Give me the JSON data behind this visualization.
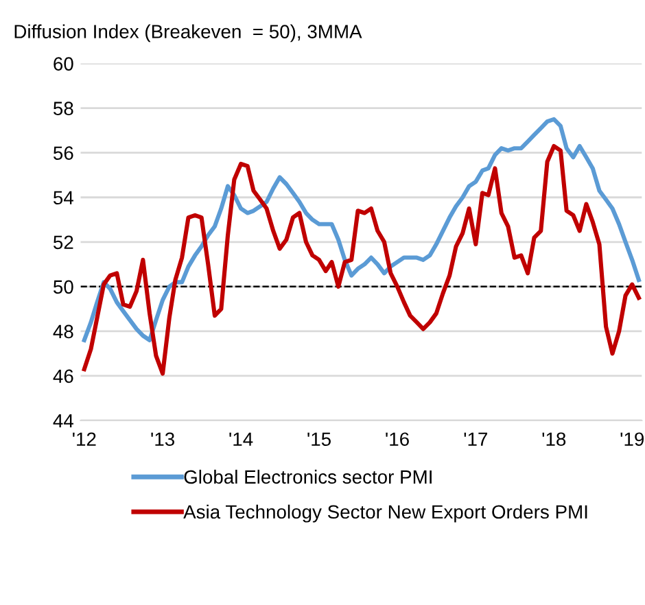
{
  "chart_data": {
    "type": "line",
    "ylabel": "Diffusion Index (Breakeven  = 50), 3MMA",
    "x": [
      "2012-01",
      "2012-02",
      "2012-03",
      "2012-04",
      "2012-05",
      "2012-06",
      "2012-07",
      "2012-08",
      "2012-09",
      "2012-10",
      "2012-11",
      "2012-12",
      "2013-01",
      "2013-02",
      "2013-03",
      "2013-04",
      "2013-05",
      "2013-06",
      "2013-07",
      "2013-08",
      "2013-09",
      "2013-10",
      "2013-11",
      "2013-12",
      "2014-01",
      "2014-02",
      "2014-03",
      "2014-04",
      "2014-05",
      "2014-06",
      "2014-07",
      "2014-08",
      "2014-09",
      "2014-10",
      "2014-11",
      "2014-12",
      "2015-01",
      "2015-02",
      "2015-03",
      "2015-04",
      "2015-05",
      "2015-06",
      "2015-07",
      "2015-08",
      "2015-09",
      "2015-10",
      "2015-11",
      "2015-12",
      "2016-01",
      "2016-02",
      "2016-03",
      "2016-04",
      "2016-05",
      "2016-06",
      "2016-07",
      "2016-08",
      "2016-09",
      "2016-10",
      "2016-11",
      "2016-12",
      "2017-01",
      "2017-02",
      "2017-03",
      "2017-04",
      "2017-05",
      "2017-06",
      "2017-07",
      "2017-08",
      "2017-09",
      "2017-10",
      "2017-11",
      "2017-12",
      "2018-01",
      "2018-02",
      "2018-03",
      "2018-04",
      "2018-05",
      "2018-06",
      "2018-07",
      "2018-08",
      "2018-09",
      "2018-10",
      "2018-11",
      "2018-12",
      "2019-01",
      "2019-02"
    ],
    "series": [
      {
        "name": "Global Electronics sector PMI",
        "color": "#5b9bd5",
        "values": [
          47.6,
          48.4,
          49.3,
          50.2,
          49.9,
          49.3,
          48.9,
          48.5,
          48.1,
          47.8,
          47.6,
          48.5,
          49.4,
          50.0,
          50.2,
          50.2,
          50.9,
          51.4,
          51.8,
          52.3,
          52.7,
          53.5,
          54.5,
          54.1,
          53.5,
          53.3,
          53.4,
          53.6,
          53.8,
          54.4,
          54.9,
          54.6,
          54.2,
          53.8,
          53.3,
          53.0,
          52.8,
          52.8,
          52.8,
          52.1,
          51.2,
          50.5,
          50.8,
          51.0,
          51.3,
          51.0,
          50.6,
          50.9,
          51.1,
          51.3,
          51.3,
          51.3,
          51.2,
          51.4,
          51.9,
          52.5,
          53.1,
          53.6,
          54.0,
          54.5,
          54.7,
          55.2,
          55.3,
          55.9,
          56.2,
          56.1,
          56.2,
          56.2,
          56.5,
          56.8,
          57.1,
          57.4,
          57.5,
          57.2,
          56.2,
          55.8,
          56.3,
          55.8,
          55.3,
          54.3,
          53.9,
          53.5,
          52.8,
          52.0,
          51.2,
          50.3
        ]
      },
      {
        "name": "Asia Technology Sector New Export Orders PMI",
        "color": "#c00000",
        "values": [
          46.3,
          47.2,
          48.6,
          50.1,
          50.5,
          50.6,
          49.2,
          49.1,
          49.8,
          51.2,
          48.8,
          46.9,
          46.1,
          48.6,
          50.3,
          51.3,
          53.1,
          53.2,
          53.1,
          51.0,
          48.7,
          49.0,
          52.3,
          54.8,
          55.5,
          55.4,
          54.3,
          53.9,
          53.5,
          52.5,
          51.7,
          52.1,
          53.1,
          53.3,
          52.0,
          51.4,
          51.2,
          50.7,
          51.1,
          50.0,
          51.1,
          51.2,
          53.4,
          53.3,
          53.5,
          52.5,
          52.0,
          50.6,
          50.0,
          49.3,
          48.7,
          48.4,
          48.1,
          48.4,
          48.8,
          49.7,
          50.5,
          51.8,
          52.4,
          53.5,
          51.9,
          54.2,
          54.1,
          55.3,
          53.3,
          52.7,
          51.3,
          51.4,
          50.6,
          52.2,
          52.5,
          55.6,
          56.3,
          56.1,
          53.4,
          53.2,
          52.5,
          53.7,
          52.9,
          51.9,
          48.2,
          47.0,
          48.0,
          49.6,
          50.1,
          49.5
        ]
      }
    ],
    "xlim": [
      "2011-12-15",
      "2019-02-15"
    ],
    "xticks": [
      {
        "value": "2012-01",
        "label": "'12"
      },
      {
        "value": "2013-01",
        "label": "'13"
      },
      {
        "value": "2014-01",
        "label": "'14"
      },
      {
        "value": "2015-01",
        "label": "'15"
      },
      {
        "value": "2016-01",
        "label": "'16"
      },
      {
        "value": "2017-01",
        "label": "'17"
      },
      {
        "value": "2018-01",
        "label": "'18"
      },
      {
        "value": "2019-01",
        "label": "'19"
      }
    ],
    "ylim": [
      44,
      60
    ],
    "yticks": [
      44,
      46,
      48,
      50,
      52,
      54,
      56,
      58,
      60
    ],
    "ref_lines": [
      {
        "axis": "y",
        "value": 50,
        "color": "#000000",
        "line_style": "dashed"
      }
    ],
    "grid": "y",
    "legend": "bottom",
    "marker": "none",
    "line_style": "solid"
  }
}
